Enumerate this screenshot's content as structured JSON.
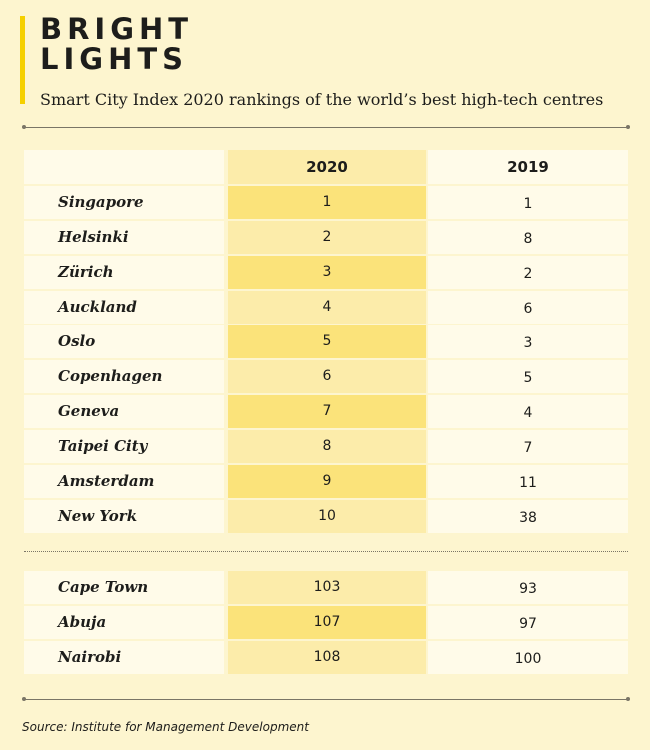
{
  "header": {
    "title": "BRIGHT LIGHTS",
    "subtitle": "Smart City Index 2020 rankings of the world’s best high-tech centres"
  },
  "colors": {
    "accent": "#f5d000",
    "background": "#fdf5cf",
    "highlight_2020": "#fbe37a",
    "column_2020": "#fcecaa",
    "row_light": "#fffbe9"
  },
  "chart_data": {
    "type": "table",
    "columns": [
      "2020",
      "2019"
    ],
    "rows": [
      {
        "city": "Singapore",
        "rank_2020": "1",
        "rank_2019": "1"
      },
      {
        "city": "Helsinki",
        "rank_2020": "2",
        "rank_2019": "8"
      },
      {
        "city": "Zürich",
        "rank_2020": "3",
        "rank_2019": "2"
      },
      {
        "city": "Auckland",
        "rank_2020": "4",
        "rank_2019": "6"
      },
      {
        "city": "Oslo",
        "rank_2020": "5",
        "rank_2019": "3"
      },
      {
        "city": "Copenhagen",
        "rank_2020": "6",
        "rank_2019": "5"
      },
      {
        "city": "Geneva",
        "rank_2020": "7",
        "rank_2019": "4"
      },
      {
        "city": "Taipei City",
        "rank_2020": "8",
        "rank_2019": "7"
      },
      {
        "city": "Amsterdam",
        "rank_2020": "9",
        "rank_2019": "11"
      },
      {
        "city": "New York",
        "rank_2020": "10",
        "rank_2019": "38"
      },
      {
        "city": "Cape Town",
        "rank_2020": "103",
        "rank_2019": "93"
      },
      {
        "city": "Abuja",
        "rank_2020": "107",
        "rank_2019": "97"
      },
      {
        "city": "Nairobi",
        "rank_2020": "108",
        "rank_2019": "100"
      }
    ],
    "highlighted_2020_rows": [
      "Singapore",
      "Zürich",
      "Oslo",
      "Geneva",
      "Amsterdam",
      "Abuja"
    ]
  },
  "footer": {
    "source": "Source: Institute for Management Development"
  }
}
